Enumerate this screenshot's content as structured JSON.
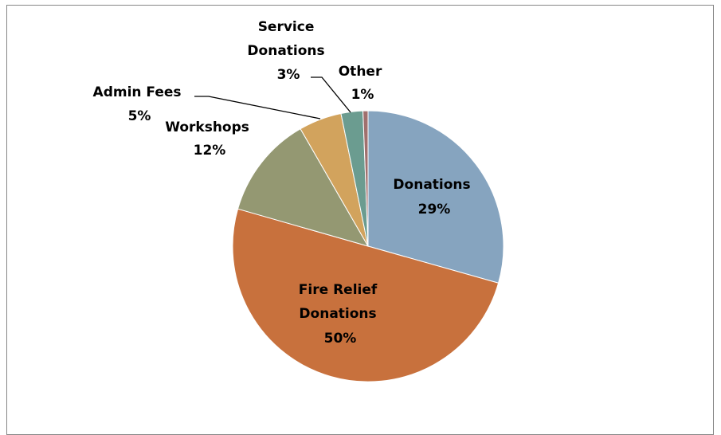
{
  "chart_data": {
    "type": "pie",
    "title": "",
    "slices": [
      {
        "label": "Donations",
        "pct_text": "29%",
        "value": 29.3,
        "color": "#86a4bf"
      },
      {
        "label": "Fire Relief Donations",
        "pct_text": "50%",
        "value": 49.9,
        "color": "#c8713d"
      },
      {
        "label": "Workshops",
        "pct_text": "12%",
        "value": 12.2,
        "color": "#949872"
      },
      {
        "label": "Admin Fees",
        "pct_text": "5%",
        "value": 5.1,
        "color": "#d2a35d"
      },
      {
        "label": "Service Donations",
        "pct_text": "3%",
        "value": 2.6,
        "color": "#6b9c90"
      },
      {
        "label": "Other",
        "pct_text": "1%",
        "value": 0.6,
        "color": "#a0706e"
      }
    ],
    "legend": "none",
    "start_angle": "12 o'clock, clockwise",
    "labels": "category name and percentage",
    "colors": {
      "border": "#868686"
    }
  }
}
